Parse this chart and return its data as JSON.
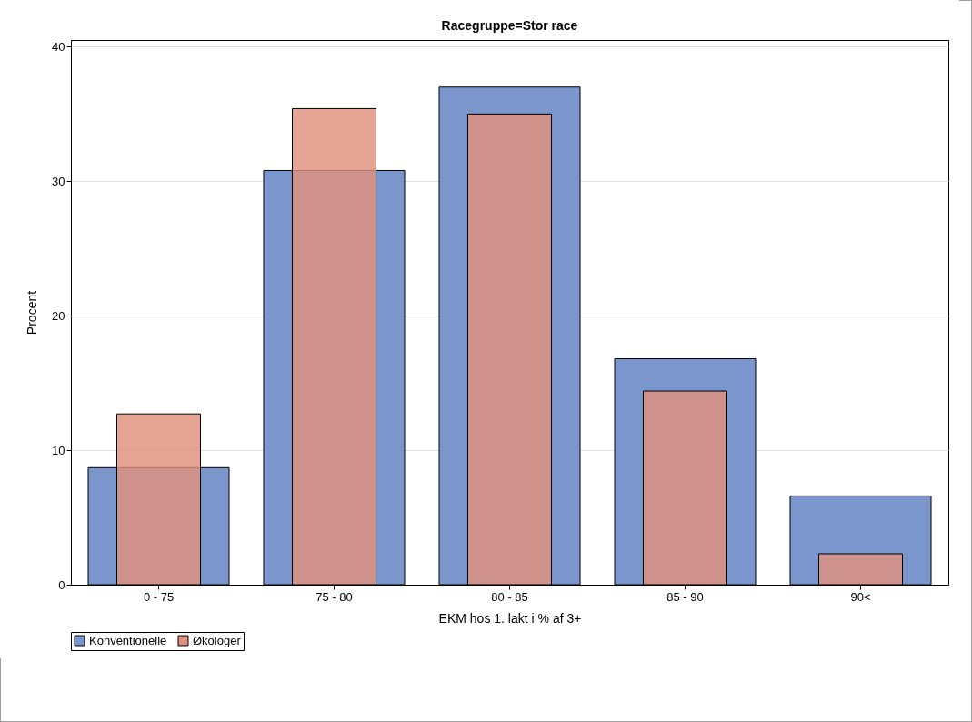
{
  "chart_data": {
    "type": "bar",
    "title": "Racegruppe=Stor race",
    "xlabel": "EKM hos 1. lakt i % af 3+",
    "ylabel": "Procent",
    "categories": [
      "0 - 75",
      "75 - 80",
      "80 - 85",
      "85 - 90",
      "90<"
    ],
    "series": [
      {
        "name": "Konventionelle",
        "color": "#7b96cc",
        "values": [
          8.7,
          30.8,
          37.0,
          16.8,
          6.6
        ]
      },
      {
        "name": "Økologer",
        "color": "#e0907e",
        "values": [
          12.7,
          35.4,
          35.0,
          14.4,
          2.3
        ]
      }
    ],
    "ylim": [
      0,
      40.5
    ],
    "yticks": [
      0,
      10,
      20,
      30,
      40
    ],
    "grid": "y",
    "legend": "bottom"
  }
}
